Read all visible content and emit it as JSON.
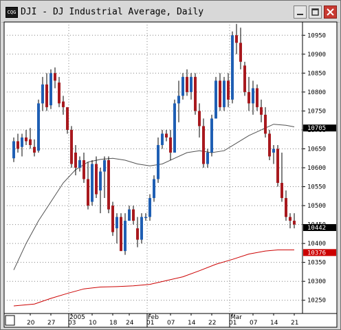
{
  "window": {
    "icon_name": "chart-app-icon",
    "icon_text": "CQG",
    "title": "DJI - DJ Industrial Average, Daily",
    "buttons": [
      "minimize-icon",
      "maximize-icon",
      "close-icon"
    ]
  },
  "chart_data": {
    "type": "candlestick",
    "title": "DJI - DJ Industrial Average, Daily",
    "y_ticks": [
      10250,
      10300,
      10350,
      10400,
      10450,
      10500,
      10550,
      10600,
      10650,
      10700,
      10750,
      10800,
      10850,
      10900,
      10950
    ],
    "ylim": [
      10215,
      10985
    ],
    "x_tick_labels": [
      {
        "label": "20",
        "i": 4
      },
      {
        "label": "27",
        "i": 9
      },
      {
        "label": "03",
        "i": 14
      },
      {
        "label": "10",
        "i": 19
      },
      {
        "label": "18",
        "i": 24
      },
      {
        "label": "24",
        "i": 28
      },
      {
        "label": "01",
        "i": 33
      },
      {
        "label": "07",
        "i": 38
      },
      {
        "label": "14",
        "i": 43
      },
      {
        "label": "22",
        "i": 48
      },
      {
        "label": "01",
        "i": 53
      },
      {
        "label": "07",
        "i": 58
      },
      {
        "label": "14",
        "i": 63
      },
      {
        "label": "21",
        "i": 68
      }
    ],
    "period_labels": [
      {
        "label": "2005",
        "i": 14
      },
      {
        "label": "Feb",
        "i": 33
      },
      {
        "label": "Mar",
        "i": 53
      }
    ],
    "last_price_tags": [
      {
        "value": 10705,
        "text": "10705",
        "color": "#000000",
        "text_color": "#ffffff"
      },
      {
        "value": 10442,
        "text": "10442",
        "color": "#000000",
        "text_color": "#ffffff"
      },
      {
        "value": 10376,
        "text": "10376",
        "color": "#cc0000",
        "text_color": "#ffffff"
      }
    ],
    "colors": {
      "up": "#1f5fb4",
      "down": "#a8191e",
      "ma_long": "#cc0000",
      "ma_short": "#505050",
      "grid": "#808080"
    },
    "candles": [
      [
        10625,
        10680,
        10615,
        10670
      ],
      [
        10670,
        10690,
        10640,
        10650
      ],
      [
        10655,
        10690,
        10630,
        10680
      ],
      [
        10680,
        10700,
        10660,
        10670
      ],
      [
        10675,
        10705,
        10650,
        10660
      ],
      [
        10655,
        10675,
        10630,
        10640
      ],
      [
        10645,
        10780,
        10640,
        10770
      ],
      [
        10770,
        10840,
        10750,
        10820
      ],
      [
        10820,
        10850,
        10750,
        10760
      ],
      [
        10765,
        10860,
        10755,
        10850
      ],
      [
        10850,
        10865,
        10810,
        10830
      ],
      [
        10825,
        10840,
        10760,
        10770
      ],
      [
        10775,
        10790,
        10740,
        10760
      ],
      [
        10760,
        10760,
        10690,
        10700
      ],
      [
        10700,
        10710,
        10600,
        10610
      ],
      [
        10640,
        10660,
        10580,
        10600
      ],
      [
        10600,
        10630,
        10590,
        10620
      ],
      [
        10620,
        10640,
        10560,
        10570
      ],
      [
        10570,
        10615,
        10490,
        10500
      ],
      [
        10510,
        10620,
        10500,
        10610
      ],
      [
        10610,
        10630,
        10520,
        10530
      ],
      [
        10540,
        10600,
        10480,
        10590
      ],
      [
        10590,
        10630,
        10520,
        10620
      ],
      [
        10620,
        10630,
        10480,
        10490
      ],
      [
        10500,
        10510,
        10420,
        10430
      ],
      [
        10440,
        10480,
        10400,
        10470
      ],
      [
        10470,
        10480,
        10380,
        10380
      ],
      [
        10380,
        10480,
        10370,
        10460
      ],
      [
        10460,
        10500,
        10460,
        10490
      ],
      [
        10490,
        10500,
        10450,
        10460
      ],
      [
        10440,
        10470,
        10390,
        10410
      ],
      [
        10410,
        10480,
        10400,
        10470
      ],
      [
        10470,
        10480,
        10460,
        10470
      ],
      [
        10470,
        10530,
        10460,
        10520
      ],
      [
        10520,
        10580,
        10510,
        10570
      ],
      [
        10570,
        10680,
        10560,
        10660
      ],
      [
        10660,
        10700,
        10650,
        10690
      ],
      [
        10690,
        10700,
        10670,
        10680
      ],
      [
        10680,
        10700,
        10620,
        10640
      ],
      [
        10640,
        10780,
        10640,
        10770
      ],
      [
        10770,
        10830,
        10720,
        10790
      ],
      [
        10790,
        10850,
        10780,
        10840
      ],
      [
        10840,
        10860,
        10790,
        10800
      ],
      [
        10800,
        10850,
        10780,
        10840
      ],
      [
        10840,
        10850,
        10740,
        10750
      ],
      [
        10750,
        10770,
        10680,
        10710
      ],
      [
        10710,
        10730,
        10600,
        10610
      ],
      [
        10610,
        10650,
        10600,
        10640
      ],
      [
        10640,
        10740,
        10630,
        10730
      ],
      [
        10730,
        10840,
        10730,
        10830
      ],
      [
        10830,
        10850,
        10750,
        10760
      ],
      [
        10760,
        10840,
        10750,
        10830
      ],
      [
        10830,
        10850,
        10760,
        10780
      ],
      [
        10780,
        10960,
        10770,
        10950
      ],
      [
        10950,
        10980,
        10900,
        10930
      ],
      [
        10930,
        10970,
        10860,
        10880
      ],
      [
        10870,
        10880,
        10790,
        10800
      ],
      [
        10800,
        10840,
        10750,
        10770
      ],
      [
        10770,
        10830,
        10740,
        10810
      ],
      [
        10810,
        10820,
        10750,
        10760
      ],
      [
        10760,
        10780,
        10720,
        10740
      ],
      [
        10740,
        10760,
        10680,
        10690
      ],
      [
        10690,
        10700,
        10620,
        10630
      ],
      [
        10640,
        10660,
        10610,
        10650
      ],
      [
        10650,
        10660,
        10550,
        10560
      ],
      [
        10560,
        10640,
        10510,
        10520
      ],
      [
        10520,
        10540,
        10460,
        10470
      ],
      [
        10470,
        10480,
        10440,
        10460
      ],
      [
        10460,
        10480,
        10440,
        10450
      ]
    ],
    "ma_short": [
      [
        0,
        10330
      ],
      [
        3,
        10400
      ],
      [
        6,
        10460
      ],
      [
        9,
        10510
      ],
      [
        12,
        10560
      ],
      [
        15,
        10595
      ],
      [
        18,
        10615
      ],
      [
        21,
        10622
      ],
      [
        24,
        10625
      ],
      [
        27,
        10620
      ],
      [
        30,
        10610
      ],
      [
        33,
        10605
      ],
      [
        36,
        10610
      ],
      [
        39,
        10625
      ],
      [
        42,
        10640
      ],
      [
        45,
        10645
      ],
      [
        48,
        10640
      ],
      [
        51,
        10645
      ],
      [
        54,
        10665
      ],
      [
        57,
        10685
      ],
      [
        60,
        10700
      ],
      [
        63,
        10715
      ],
      [
        66,
        10712
      ],
      [
        68,
        10708
      ]
    ],
    "ma_long": [
      [
        0,
        10235
      ],
      [
        5,
        10240
      ],
      [
        9,
        10255
      ],
      [
        13,
        10268
      ],
      [
        17,
        10280
      ],
      [
        21,
        10285
      ],
      [
        25,
        10286
      ],
      [
        29,
        10288
      ],
      [
        33,
        10292
      ],
      [
        37,
        10302
      ],
      [
        41,
        10312
      ],
      [
        45,
        10328
      ],
      [
        49,
        10345
      ],
      [
        53,
        10358
      ],
      [
        57,
        10372
      ],
      [
        61,
        10380
      ],
      [
        64,
        10383
      ],
      [
        66,
        10383
      ],
      [
        68,
        10383
      ]
    ]
  }
}
